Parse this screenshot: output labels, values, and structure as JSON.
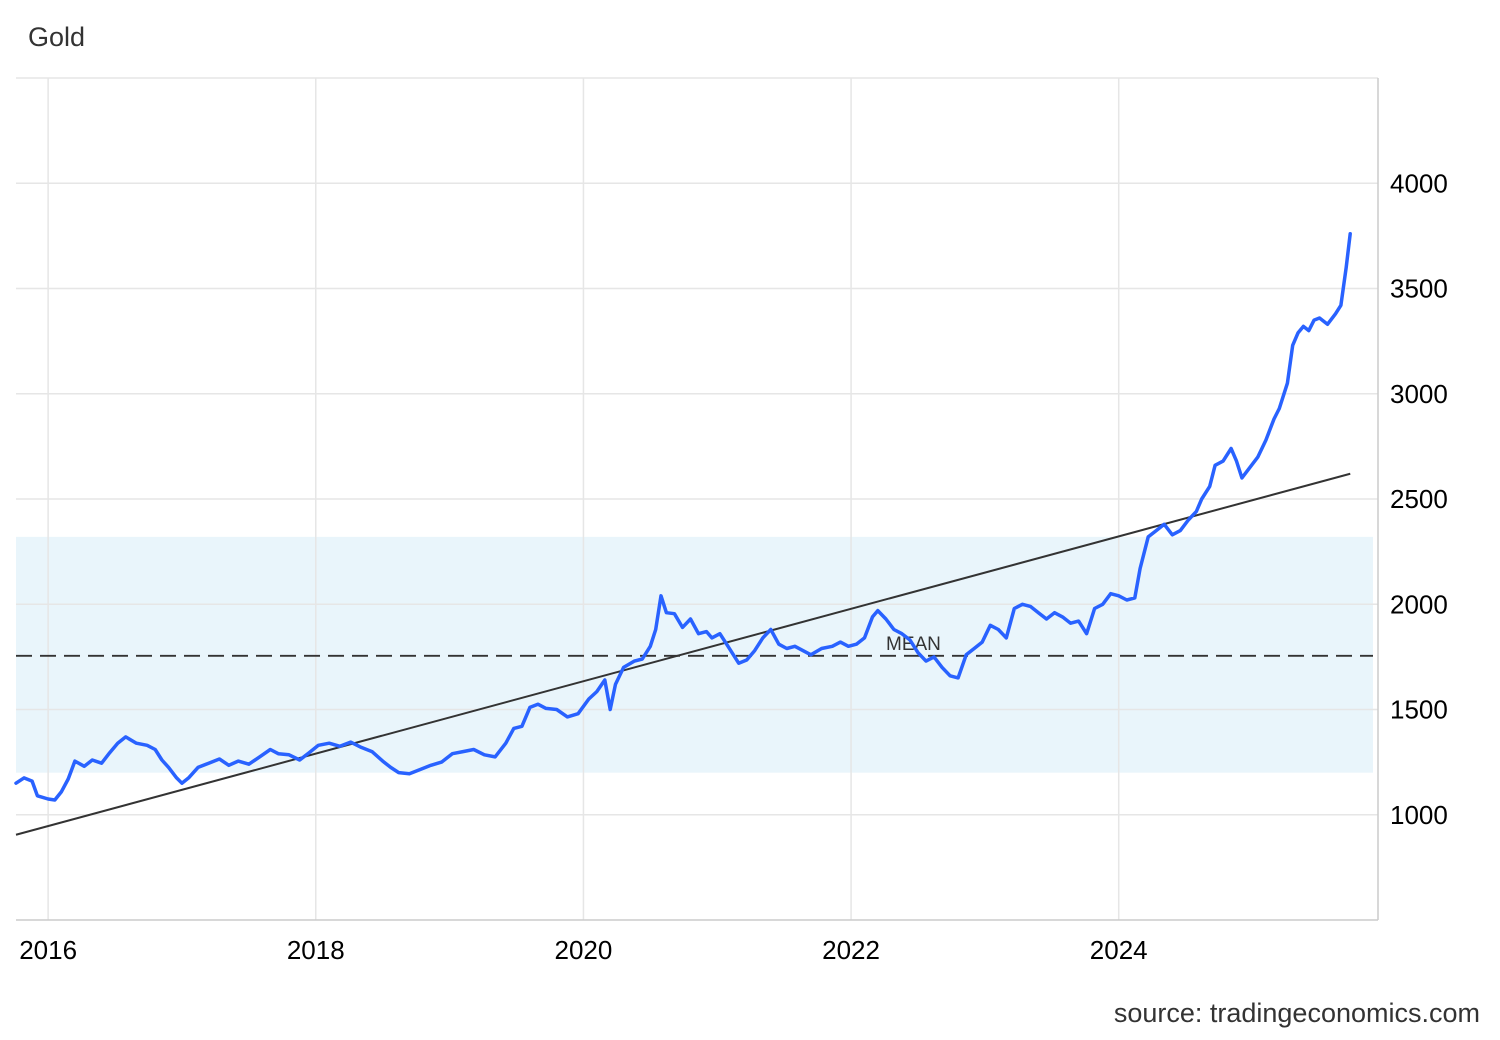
{
  "title": "Gold",
  "source": "source: tradingeconomics.com",
  "chart_data": {
    "type": "line",
    "title": "Gold",
    "xlabel": "",
    "ylabel": "",
    "xlim": [
      2015.76,
      2025.9
    ],
    "ylim": [
      500,
      4500
    ],
    "grid": true,
    "yticks": [
      1000,
      1500,
      2000,
      2500,
      3000,
      3500,
      4000
    ],
    "xticks": [
      2016,
      2018,
      2020,
      2022,
      2024
    ],
    "colors": {
      "series": "#2962ff",
      "trend": "#333333",
      "band": "#e9f5fb",
      "grid": "#e6e6e6"
    },
    "band": {
      "from": 1200,
      "to": 2320
    },
    "mean": {
      "value": 1755,
      "label": "MEAN"
    },
    "trendline": {
      "start": [
        2015.76,
        905
      ],
      "end": [
        2025.73,
        2620
      ]
    },
    "series": [
      {
        "name": "",
        "points": [
          [
            2015.76,
            1150
          ],
          [
            2015.82,
            1175
          ],
          [
            2015.88,
            1160
          ],
          [
            2015.92,
            1090
          ],
          [
            2016.0,
            1075
          ],
          [
            2016.05,
            1070
          ],
          [
            2016.1,
            1110
          ],
          [
            2016.15,
            1170
          ],
          [
            2016.2,
            1255
          ],
          [
            2016.27,
            1230
          ],
          [
            2016.33,
            1260
          ],
          [
            2016.4,
            1245
          ],
          [
            2016.46,
            1295
          ],
          [
            2016.52,
            1340
          ],
          [
            2016.58,
            1370
          ],
          [
            2016.66,
            1340
          ],
          [
            2016.74,
            1330
          ],
          [
            2016.8,
            1310
          ],
          [
            2016.85,
            1260
          ],
          [
            2016.9,
            1225
          ],
          [
            2016.96,
            1175
          ],
          [
            2017.0,
            1150
          ],
          [
            2017.05,
            1175
          ],
          [
            2017.12,
            1225
          ],
          [
            2017.2,
            1245
          ],
          [
            2017.28,
            1265
          ],
          [
            2017.35,
            1235
          ],
          [
            2017.42,
            1255
          ],
          [
            2017.5,
            1240
          ],
          [
            2017.58,
            1275
          ],
          [
            2017.66,
            1310
          ],
          [
            2017.72,
            1290
          ],
          [
            2017.8,
            1285
          ],
          [
            2017.88,
            1260
          ],
          [
            2017.95,
            1295
          ],
          [
            2018.02,
            1330
          ],
          [
            2018.1,
            1340
          ],
          [
            2018.18,
            1325
          ],
          [
            2018.26,
            1345
          ],
          [
            2018.34,
            1320
          ],
          [
            2018.42,
            1300
          ],
          [
            2018.5,
            1255
          ],
          [
            2018.56,
            1225
          ],
          [
            2018.62,
            1200
          ],
          [
            2018.7,
            1195
          ],
          [
            2018.78,
            1215
          ],
          [
            2018.86,
            1235
          ],
          [
            2018.94,
            1250
          ],
          [
            2019.02,
            1290
          ],
          [
            2019.1,
            1300
          ],
          [
            2019.18,
            1310
          ],
          [
            2019.26,
            1285
          ],
          [
            2019.34,
            1275
          ],
          [
            2019.42,
            1340
          ],
          [
            2019.48,
            1410
          ],
          [
            2019.54,
            1420
          ],
          [
            2019.6,
            1510
          ],
          [
            2019.66,
            1525
          ],
          [
            2019.72,
            1505
          ],
          [
            2019.8,
            1500
          ],
          [
            2019.88,
            1465
          ],
          [
            2019.96,
            1480
          ],
          [
            2020.04,
            1550
          ],
          [
            2020.1,
            1585
          ],
          [
            2020.16,
            1640
          ],
          [
            2020.2,
            1500
          ],
          [
            2020.24,
            1620
          ],
          [
            2020.3,
            1700
          ],
          [
            2020.38,
            1730
          ],
          [
            2020.44,
            1740
          ],
          [
            2020.5,
            1800
          ],
          [
            2020.54,
            1880
          ],
          [
            2020.58,
            2040
          ],
          [
            2020.62,
            1960
          ],
          [
            2020.68,
            1955
          ],
          [
            2020.74,
            1890
          ],
          [
            2020.8,
            1930
          ],
          [
            2020.86,
            1860
          ],
          [
            2020.92,
            1870
          ],
          [
            2020.96,
            1840
          ],
          [
            2021.02,
            1860
          ],
          [
            2021.08,
            1800
          ],
          [
            2021.16,
            1720
          ],
          [
            2021.22,
            1735
          ],
          [
            2021.28,
            1780
          ],
          [
            2021.34,
            1840
          ],
          [
            2021.4,
            1880
          ],
          [
            2021.46,
            1810
          ],
          [
            2021.52,
            1790
          ],
          [
            2021.58,
            1800
          ],
          [
            2021.64,
            1780
          ],
          [
            2021.7,
            1760
          ],
          [
            2021.78,
            1790
          ],
          [
            2021.86,
            1800
          ],
          [
            2021.92,
            1820
          ],
          [
            2021.98,
            1800
          ],
          [
            2022.04,
            1810
          ],
          [
            2022.1,
            1840
          ],
          [
            2022.16,
            1940
          ],
          [
            2022.2,
            1970
          ],
          [
            2022.26,
            1930
          ],
          [
            2022.32,
            1880
          ],
          [
            2022.38,
            1860
          ],
          [
            2022.44,
            1830
          ],
          [
            2022.5,
            1770
          ],
          [
            2022.56,
            1730
          ],
          [
            2022.62,
            1750
          ],
          [
            2022.68,
            1700
          ],
          [
            2022.74,
            1660
          ],
          [
            2022.8,
            1650
          ],
          [
            2022.86,
            1760
          ],
          [
            2022.92,
            1790
          ],
          [
            2022.98,
            1820
          ],
          [
            2023.04,
            1900
          ],
          [
            2023.1,
            1880
          ],
          [
            2023.16,
            1840
          ],
          [
            2023.22,
            1980
          ],
          [
            2023.28,
            2000
          ],
          [
            2023.34,
            1990
          ],
          [
            2023.4,
            1960
          ],
          [
            2023.46,
            1930
          ],
          [
            2023.52,
            1960
          ],
          [
            2023.58,
            1940
          ],
          [
            2023.64,
            1910
          ],
          [
            2023.7,
            1920
          ],
          [
            2023.76,
            1860
          ],
          [
            2023.82,
            1980
          ],
          [
            2023.88,
            2000
          ],
          [
            2023.94,
            2050
          ],
          [
            2024.0,
            2040
          ],
          [
            2024.06,
            2020
          ],
          [
            2024.12,
            2030
          ],
          [
            2024.16,
            2170
          ],
          [
            2024.22,
            2320
          ],
          [
            2024.28,
            2350
          ],
          [
            2024.34,
            2380
          ],
          [
            2024.4,
            2330
          ],
          [
            2024.46,
            2350
          ],
          [
            2024.52,
            2400
          ],
          [
            2024.58,
            2440
          ],
          [
            2024.62,
            2500
          ],
          [
            2024.68,
            2560
          ],
          [
            2024.72,
            2660
          ],
          [
            2024.78,
            2680
          ],
          [
            2024.84,
            2740
          ],
          [
            2024.88,
            2680
          ],
          [
            2024.92,
            2600
          ],
          [
            2024.98,
            2650
          ],
          [
            2025.04,
            2700
          ],
          [
            2025.1,
            2780
          ],
          [
            2025.16,
            2880
          ],
          [
            2025.2,
            2930
          ],
          [
            2025.26,
            3050
          ],
          [
            2025.3,
            3230
          ],
          [
            2025.34,
            3290
          ],
          [
            2025.38,
            3320
          ],
          [
            2025.42,
            3300
          ],
          [
            2025.46,
            3350
          ],
          [
            2025.5,
            3360
          ],
          [
            2025.56,
            3330
          ],
          [
            2025.62,
            3380
          ],
          [
            2025.66,
            3420
          ],
          [
            2025.7,
            3600
          ],
          [
            2025.73,
            3760
          ]
        ]
      }
    ]
  }
}
